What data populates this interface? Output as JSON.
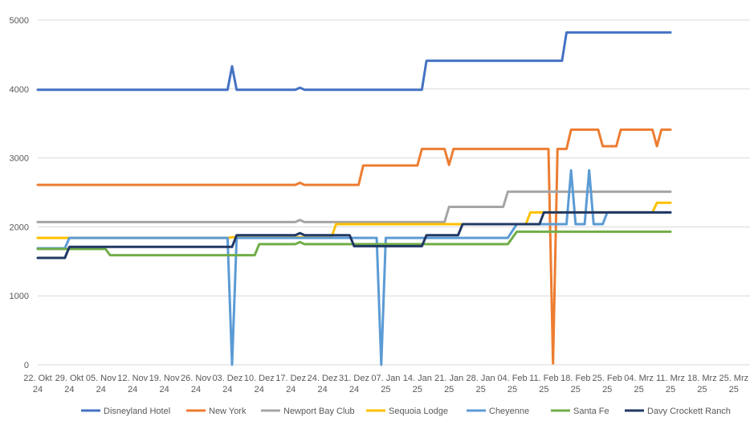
{
  "chart_data": {
    "type": "line",
    "title": "",
    "xlabel": "",
    "ylabel": "",
    "ylim": [
      0,
      5000
    ],
    "y_ticks": [
      0,
      1000,
      2000,
      3000,
      4000,
      5000
    ],
    "grid": "horizontal",
    "legend_position": "bottom",
    "x_tick_labels": [
      [
        "22. Okt",
        "24"
      ],
      [
        "29. Okt",
        "24"
      ],
      [
        "05. Nov",
        "24"
      ],
      [
        "12. Nov",
        "24"
      ],
      [
        "19. Nov",
        "24"
      ],
      [
        "26. Nov",
        "24"
      ],
      [
        "03. Dez",
        "24"
      ],
      [
        "10. Dez",
        "24"
      ],
      [
        "17. Dez",
        "24"
      ],
      [
        "24. Dez",
        "24"
      ],
      [
        "31. Dez",
        "24"
      ],
      [
        "07. Jan",
        "25"
      ],
      [
        "14. Jan",
        "25"
      ],
      [
        "21. Jan",
        "25"
      ],
      [
        "28. Jan",
        "25"
      ],
      [
        "04. Feb",
        "25"
      ],
      [
        "11. Feb",
        "25"
      ],
      [
        "18. Feb",
        "25"
      ],
      [
        "25. Feb",
        "25"
      ],
      [
        "04. Mrz",
        "25"
      ],
      [
        "11. Mrz",
        "25"
      ],
      [
        "18. Mrz",
        "25"
      ],
      [
        "25. Mrz",
        "25"
      ]
    ],
    "x_domain": [
      0,
      154
    ],
    "series": [
      {
        "name": "Disneyland Hotel",
        "color": "#4472C4",
        "points": [
          [
            0,
            3990
          ],
          [
            42,
            3990
          ],
          [
            43,
            4330
          ],
          [
            44,
            3990
          ],
          [
            57,
            3990
          ],
          [
            58,
            4020
          ],
          [
            59,
            3990
          ],
          [
            85,
            3990
          ],
          [
            86,
            4410
          ],
          [
            116,
            4410
          ],
          [
            117,
            4820
          ],
          [
            140,
            4820
          ]
        ]
      },
      {
        "name": "New York",
        "color": "#ED7D31",
        "points": [
          [
            0,
            2610
          ],
          [
            57,
            2610
          ],
          [
            58,
            2640
          ],
          [
            59,
            2610
          ],
          [
            71,
            2610
          ],
          [
            72,
            2890
          ],
          [
            84,
            2890
          ],
          [
            85,
            3130
          ],
          [
            90,
            3130
          ],
          [
            91,
            2900
          ],
          [
            92,
            3130
          ],
          [
            113,
            3130
          ],
          [
            114,
            20
          ],
          [
            115,
            3130
          ],
          [
            117,
            3130
          ],
          [
            118,
            3410
          ],
          [
            124,
            3410
          ],
          [
            125,
            3170
          ],
          [
            128,
            3170
          ],
          [
            129,
            3410
          ],
          [
            136,
            3410
          ],
          [
            137,
            3170
          ],
          [
            138,
            3410
          ],
          [
            140,
            3410
          ]
        ]
      },
      {
        "name": "Newport Bay Club",
        "color": "#A5A5A5",
        "points": [
          [
            0,
            2070
          ],
          [
            57,
            2070
          ],
          [
            58,
            2100
          ],
          [
            59,
            2070
          ],
          [
            90,
            2070
          ],
          [
            91,
            2290
          ],
          [
            103,
            2290
          ],
          [
            104,
            2510
          ],
          [
            140,
            2510
          ]
        ]
      },
      {
        "name": "Sequoia Lodge",
        "color": "#FFC000",
        "points": [
          [
            0,
            1840
          ],
          [
            42,
            1840
          ],
          [
            43,
            1850
          ],
          [
            65,
            1850
          ],
          [
            66,
            2040
          ],
          [
            108,
            2040
          ],
          [
            109,
            2210
          ],
          [
            136,
            2210
          ],
          [
            137,
            2350
          ],
          [
            140,
            2350
          ]
        ]
      },
      {
        "name": "Cheyenne",
        "color": "#5B9BD5",
        "points": [
          [
            0,
            1690
          ],
          [
            6,
            1690
          ],
          [
            7,
            1840
          ],
          [
            42,
            1840
          ],
          [
            43,
            0
          ],
          [
            44,
            1840
          ],
          [
            75,
            1840
          ],
          [
            76,
            0
          ],
          [
            77,
            1840
          ],
          [
            104,
            1840
          ],
          [
            106,
            2040
          ],
          [
            117,
            2040
          ],
          [
            118,
            2820
          ],
          [
            119,
            2040
          ],
          [
            121,
            2040
          ],
          [
            122,
            2820
          ],
          [
            123,
            2040
          ],
          [
            125,
            2040
          ],
          [
            126,
            2210
          ],
          [
            140,
            2210
          ]
        ]
      },
      {
        "name": "Santa Fe",
        "color": "#70AD47",
        "points": [
          [
            0,
            1680
          ],
          [
            15,
            1680
          ],
          [
            16,
            1590
          ],
          [
            48,
            1590
          ],
          [
            49,
            1750
          ],
          [
            57,
            1750
          ],
          [
            58,
            1780
          ],
          [
            59,
            1750
          ],
          [
            104,
            1750
          ],
          [
            106,
            1930
          ],
          [
            140,
            1930
          ]
        ]
      },
      {
        "name": "Davy Crockett Ranch",
        "color": "#203864",
        "points": [
          [
            0,
            1550
          ],
          [
            6,
            1550
          ],
          [
            7,
            1710
          ],
          [
            43,
            1710
          ],
          [
            44,
            1880
          ],
          [
            57,
            1880
          ],
          [
            58,
            1910
          ],
          [
            59,
            1880
          ],
          [
            69,
            1880
          ],
          [
            70,
            1720
          ],
          [
            85,
            1720
          ],
          [
            86,
            1880
          ],
          [
            93,
            1880
          ],
          [
            94,
            2040
          ],
          [
            104,
            2040
          ],
          [
            105,
            2040
          ],
          [
            111,
            2040
          ],
          [
            112,
            2210
          ],
          [
            140,
            2210
          ]
        ]
      }
    ]
  }
}
